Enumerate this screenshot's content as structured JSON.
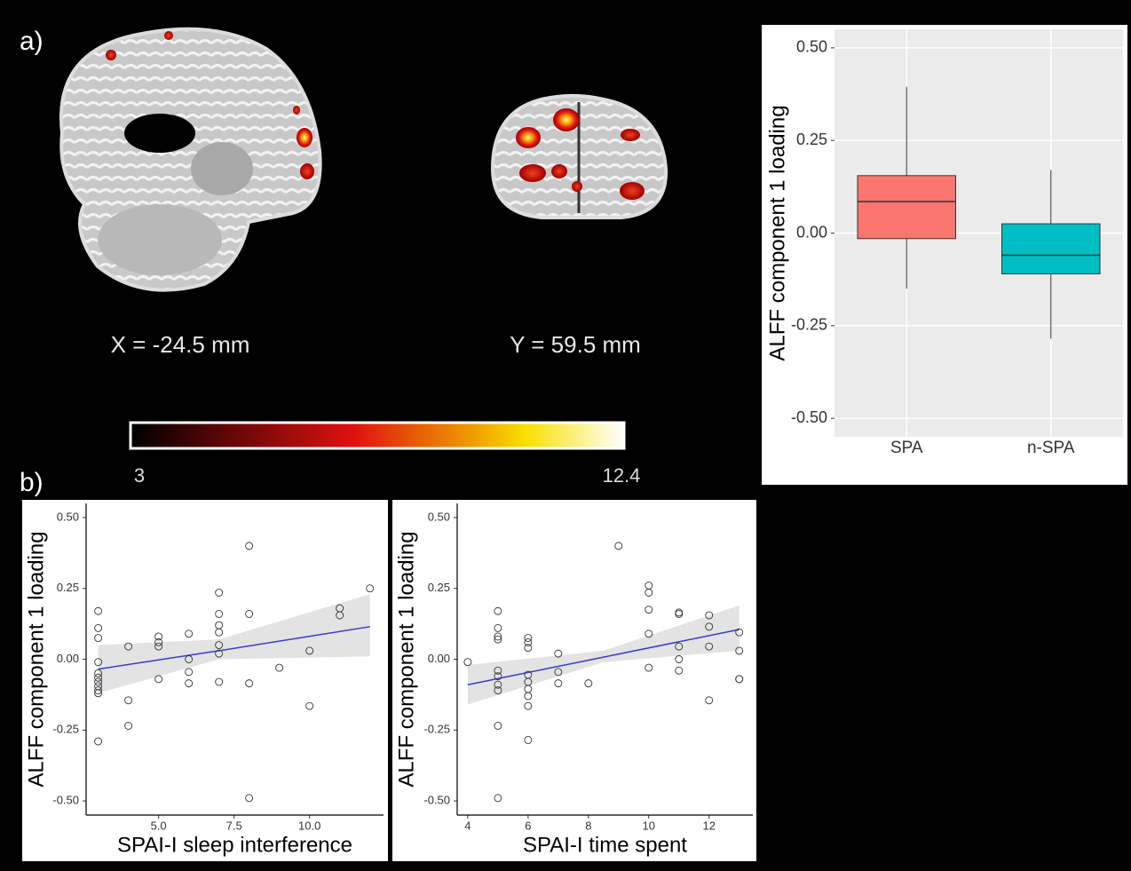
{
  "panels": {
    "a": "a)",
    "b": "b)"
  },
  "brain_images": [
    {
      "label": "X = -24.5 mm"
    },
    {
      "label": "Y = 59.5 mm"
    }
  ],
  "colorbar": {
    "min": 3,
    "max": 12.4
  },
  "chart_data": [
    {
      "type": "box",
      "ylabel": "ALFF component 1 loading",
      "categories": [
        "SPA",
        "n-SPA"
      ],
      "colors": [
        "#f8766d",
        "#00bfc4"
      ],
      "boxes": [
        {
          "min": -0.15,
          "q1": -0.015,
          "median": 0.085,
          "q3": 0.155,
          "max": 0.395
        },
        {
          "min": -0.285,
          "q1": -0.11,
          "median": -0.06,
          "q3": 0.025,
          "max": 0.17
        }
      ],
      "ylim": [
        -0.55,
        0.55
      ],
      "yticks": [
        {
          "value": -0.5,
          "label": "-0.50"
        },
        {
          "value": -0.25,
          "label": "-0.25"
        },
        {
          "value": 0,
          "label": "0.00"
        },
        {
          "value": 0.25,
          "label": "0.25"
        },
        {
          "value": 0.5,
          "label": "0.50"
        }
      ],
      "grid": true
    },
    {
      "type": "scatter",
      "xlabel": "SPAI-I sleep interference",
      "ylabel": "ALFF component 1 loading",
      "x": [
        3,
        3,
        3,
        3,
        3,
        3,
        3,
        3,
        3,
        3,
        3,
        4,
        4,
        4,
        5,
        5,
        5,
        5,
        6,
        6,
        6,
        6,
        7,
        7,
        7,
        7,
        7,
        7,
        7,
        8,
        8,
        8,
        8,
        9,
        10,
        10,
        11,
        11,
        12
      ],
      "y": [
        0.17,
        0.11,
        0.075,
        -0.01,
        -0.05,
        -0.065,
        -0.08,
        -0.095,
        -0.11,
        -0.12,
        -0.29,
        0.045,
        -0.145,
        -0.235,
        0.08,
        0.06,
        0.045,
        -0.07,
        0.09,
        0,
        -0.045,
        -0.085,
        0.235,
        0.16,
        0.12,
        0.095,
        0.05,
        0.02,
        -0.08,
        0.4,
        0.16,
        -0.085,
        -0.49,
        -0.03,
        0.03,
        -0.165,
        0.18,
        0.155,
        0.25
      ],
      "fit": {
        "color": "#3b3bc8",
        "x": [
          3,
          7,
          12
        ],
        "y": [
          -0.035,
          0.03,
          0.115
        ],
        "lower": [
          -0.12,
          0,
          0.01
        ],
        "upper": [
          0.05,
          0.07,
          0.23
        ]
      },
      "xlim": [
        2.6,
        12.45
      ],
      "xticks": [
        {
          "value": 5,
          "label": "5.0"
        },
        {
          "value": 7.5,
          "label": "7.5"
        },
        {
          "value": 10,
          "label": "10.0"
        }
      ],
      "ylim": [
        -0.55,
        0.55
      ],
      "yticks": [
        {
          "value": -0.5,
          "label": "-0.50"
        },
        {
          "value": -0.25,
          "label": "-0.25"
        },
        {
          "value": 0,
          "label": "0.00"
        },
        {
          "value": 0.25,
          "label": "0.25"
        },
        {
          "value": 0.5,
          "label": "0.50"
        }
      ],
      "grid": false
    },
    {
      "type": "scatter",
      "xlabel": "SPAI-I time spent",
      "ylabel": "ALFF component 1 loading",
      "x": [
        4,
        5,
        5,
        5,
        5,
        5,
        5,
        5,
        5,
        5,
        5,
        6,
        6,
        6,
        6,
        6,
        6,
        6,
        6,
        6,
        7,
        7,
        7,
        8,
        9,
        10,
        10,
        10,
        10,
        10,
        11,
        11,
        11,
        11,
        11,
        12,
        12,
        12,
        12,
        13,
        13,
        13,
        13
      ],
      "y": [
        -0.01,
        0.17,
        0.11,
        0.07,
        -0.04,
        -0.06,
        -0.09,
        -0.11,
        -0.235,
        -0.49,
        0.08,
        0.06,
        0.04,
        -0.055,
        -0.08,
        -0.105,
        -0.13,
        -0.165,
        -0.285,
        0.075,
        0.02,
        -0.085,
        -0.045,
        -0.085,
        0.4,
        0.26,
        0.235,
        0.09,
        -0.03,
        0.175,
        0.16,
        0.045,
        0,
        -0.04,
        0.165,
        0.115,
        0.045,
        -0.145,
        0.155,
        0.095,
        0.03,
        -0.07,
        -0.07
      ],
      "fit": {
        "color": "#3b3bc8",
        "x": [
          4,
          8.5,
          13
        ],
        "y": [
          -0.09,
          0.0075,
          0.105
        ],
        "lower": [
          -0.16,
          -0.01,
          0.03
        ],
        "upper": [
          -0.02,
          0.03,
          0.19
        ]
      },
      "xlim": [
        3.65,
        13.45
      ],
      "xticks": [
        4,
        6,
        8,
        10,
        12
      ],
      "ylim": [
        -0.55,
        0.55
      ],
      "yticks": [
        {
          "value": -0.5,
          "label": "-0.50"
        },
        {
          "value": -0.25,
          "label": "-0.25"
        },
        {
          "value": 0,
          "label": "0.00"
        },
        {
          "value": 0.25,
          "label": "0.25"
        },
        {
          "value": 0.5,
          "label": "0.50"
        }
      ],
      "grid": false
    }
  ]
}
